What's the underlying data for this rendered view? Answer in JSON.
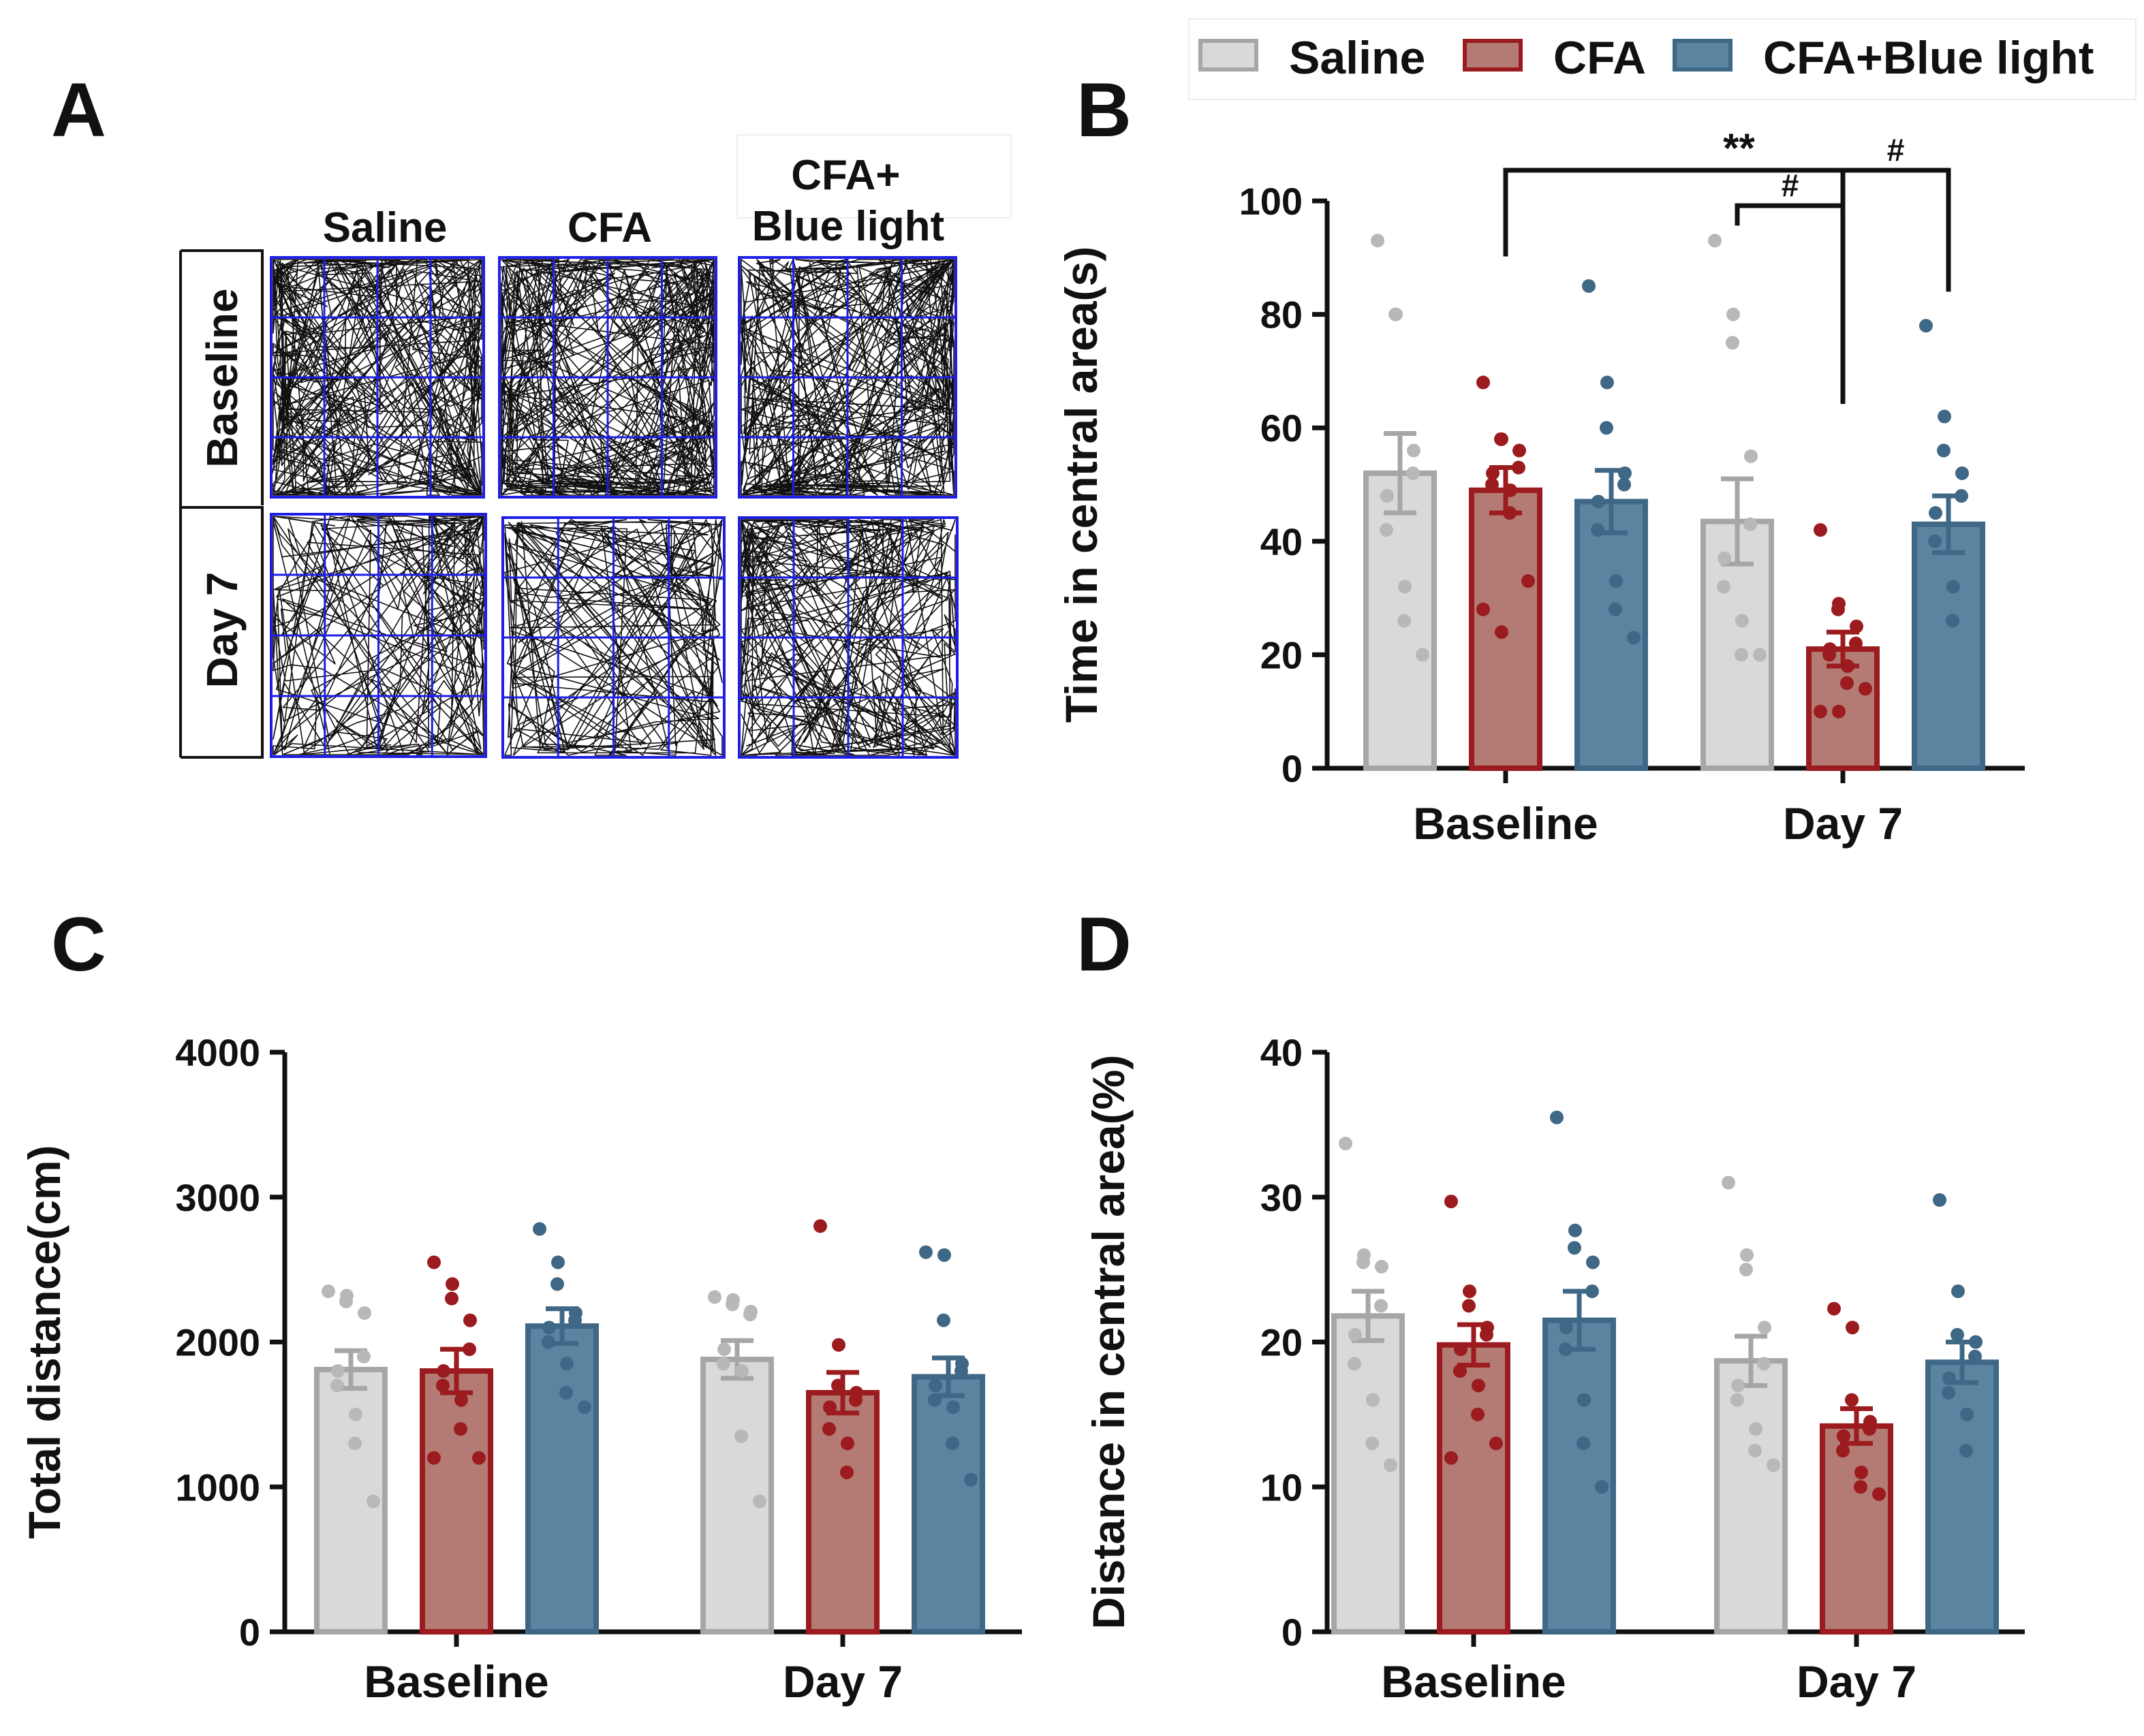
{
  "panel_labels": {
    "a": "A",
    "b": "B",
    "c": "C",
    "d": "D"
  },
  "legend": [
    {
      "name": "Saline",
      "fill": "#d9d9d9",
      "stroke": "#a6a6a6",
      "dot": "#b8b8b8"
    },
    {
      "name": "CFA",
      "fill": "#b37b74",
      "stroke": "#9b1b1e",
      "dot": "#9b1b1e"
    },
    {
      "name": "CFA+Blue light",
      "fill": "#5b84a0",
      "stroke": "#3f6886",
      "dot": "#3f6886"
    }
  ],
  "panel_a": {
    "columns": [
      "Saline",
      "CFA",
      "CFA+\nBlue light"
    ],
    "rows": [
      "Baseline",
      "Day 7"
    ],
    "grid_color": "#1e1ee6"
  },
  "chart_data": [
    {
      "id": "B",
      "type": "bar",
      "categories": [
        "Baseline",
        "Day 7"
      ],
      "ylabel": "Time in central area(s)",
      "ylim": [
        0,
        100
      ],
      "yticks": [
        0,
        20,
        40,
        60,
        80,
        100
      ],
      "series": [
        {
          "name": "Saline",
          "means": [
            52,
            43.5
          ],
          "sem": [
            7,
            7.5
          ],
          "points": [
            [
              93,
              80,
              80,
              56,
              52,
              48,
              42,
              32,
              26,
              20
            ],
            [
              93,
              80,
              75,
              55,
              43,
              37,
              32,
              26,
              20,
              20
            ]
          ]
        },
        {
          "name": "CFA",
          "means": [
            49,
            21
          ],
          "sem": [
            4,
            3
          ],
          "points": [
            [
              68,
              58,
              58,
              56,
              53,
              52,
              50,
              49,
              45,
              33,
              28,
              24
            ],
            [
              42,
              29,
              28,
              25,
              22,
              21,
              20,
              18,
              15,
              14,
              10,
              10
            ]
          ]
        },
        {
          "name": "CFA+Blue light",
          "means": [
            47,
            43
          ],
          "sem": [
            5.5,
            5
          ],
          "points": [
            [
              85,
              68,
              60,
              52,
              50,
              47,
              42,
              33,
              28,
              23
            ],
            [
              78,
              62,
              56,
              52,
              48,
              45,
              40,
              32,
              26
            ]
          ]
        }
      ],
      "annotations": [
        {
          "label": "**",
          "from": [
            0,
            1
          ],
          "to": [
            1,
            1
          ]
        },
        {
          "label": "#",
          "from": [
            1,
            0
          ],
          "to": [
            1,
            1
          ]
        },
        {
          "label": "#",
          "from": [
            1,
            1
          ],
          "to": [
            1,
            2
          ]
        }
      ]
    },
    {
      "id": "C",
      "type": "bar",
      "categories": [
        "Baseline",
        "Day 7"
      ],
      "ylabel": "Total distance(cm)",
      "ylim": [
        0,
        4000
      ],
      "yticks": [
        0,
        1000,
        2000,
        3000,
        4000
      ],
      "series": [
        {
          "name": "Saline",
          "means": [
            1810,
            1880
          ],
          "sem": [
            130,
            130
          ],
          "points": [
            [
              2350,
              2320,
              2280,
              2200,
              1900,
              1800,
              1700,
              1500,
              1300,
              900
            ],
            [
              2310,
              2290,
              2260,
              2210,
              2190,
              1950,
              1850,
              1800,
              1350,
              900
            ]
          ]
        },
        {
          "name": "CFA",
          "means": [
            1800,
            1650
          ],
          "sem": [
            150,
            140
          ],
          "points": [
            [
              2550,
              2400,
              2300,
              2150,
              1950,
              1800,
              1700,
              1600,
              1400,
              1200,
              1200
            ],
            [
              2800,
              1980,
              1700,
              1650,
              1600,
              1550,
              1400,
              1300,
              1100
            ]
          ]
        },
        {
          "name": "CFA+Blue light",
          "means": [
            2110,
            1760
          ],
          "sem": [
            120,
            130
          ],
          "points": [
            [
              2780,
              2550,
              2400,
              2200,
              2150,
              2100,
              2000,
              1850,
              1650,
              1550
            ],
            [
              2620,
              2600,
              2150,
              1850,
              1800,
              1700,
              1600,
              1550,
              1300,
              1050
            ]
          ]
        }
      ]
    },
    {
      "id": "D",
      "type": "bar",
      "categories": [
        "Baseline",
        "Day 7"
      ],
      "ylabel": "Distance in central area(%)",
      "ylim": [
        0,
        40
      ],
      "yticks": [
        0,
        10,
        20,
        30,
        40
      ],
      "series": [
        {
          "name": "Saline",
          "means": [
            21.8,
            18.7
          ],
          "sem": [
            1.7,
            1.7
          ],
          "points": [
            [
              33.7,
              26,
              25.5,
              25.2,
              22.5,
              20.5,
              18.5,
              16,
              13,
              11.5
            ],
            [
              31,
              26,
              25,
              21,
              18.5,
              17,
              16,
              14,
              12.5,
              11.5
            ]
          ]
        },
        {
          "name": "CFA",
          "means": [
            19.8,
            14.2
          ],
          "sem": [
            1.4,
            1.2
          ],
          "points": [
            [
              29.7,
              23.5,
              22.5,
              21,
              20.5,
              19.5,
              18,
              17,
              15,
              13,
              12
            ],
            [
              22.3,
              21,
              16,
              14.5,
              14,
              13.5,
              12.5,
              11,
              10,
              9.5
            ]
          ]
        },
        {
          "name": "CFA+Blue light",
          "means": [
            21.5,
            18.6
          ],
          "sem": [
            2,
            1.4
          ],
          "points": [
            [
              35.5,
              27.7,
              26.5,
              25.5,
              23.5,
              21,
              19.5,
              16,
              13,
              10
            ],
            [
              29.8,
              23.5,
              20.5,
              20,
              19,
              17.5,
              16.5,
              15,
              12.5
            ]
          ]
        }
      ]
    }
  ]
}
